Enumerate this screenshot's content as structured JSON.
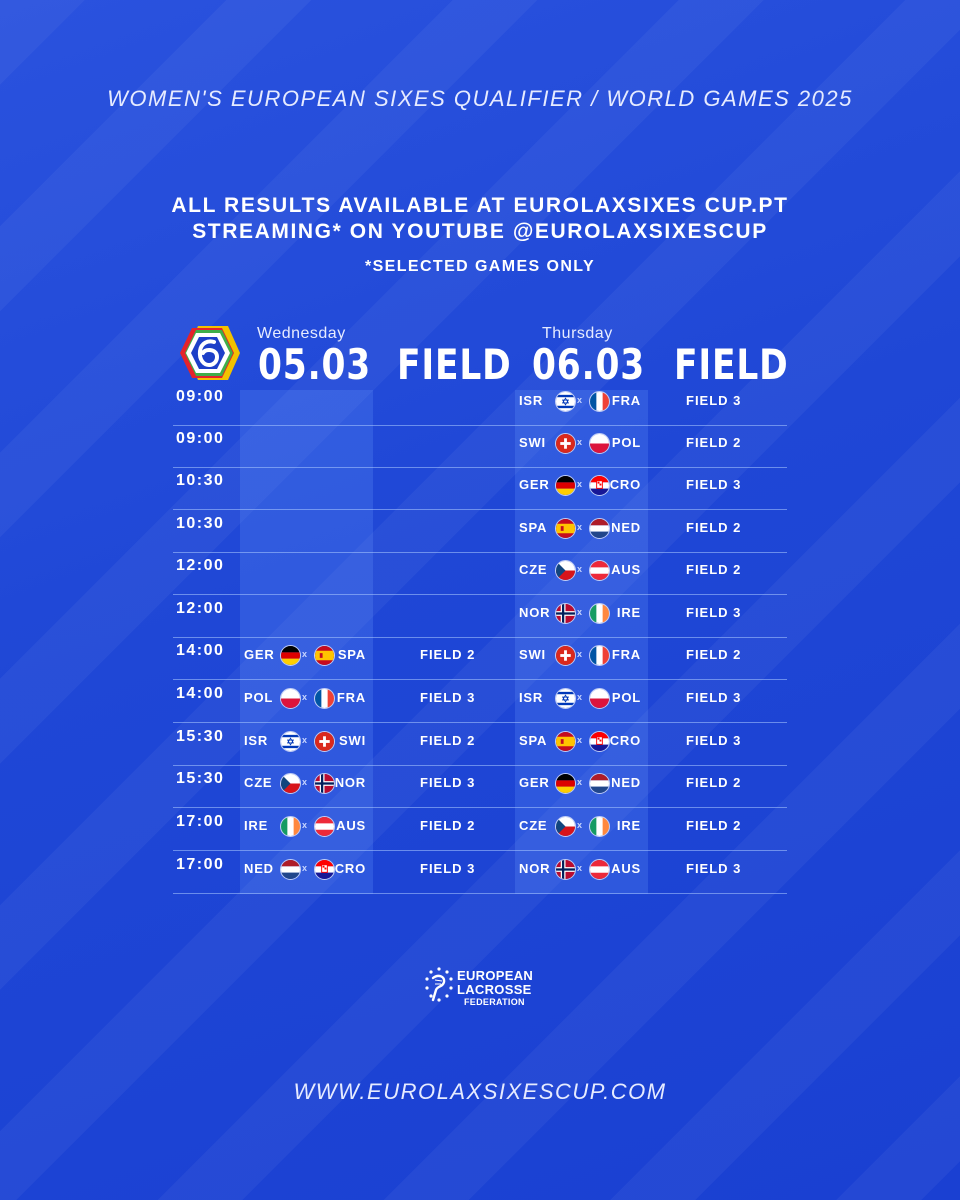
{
  "header": {
    "title": "WOMEN'S EUROPEAN SIXES QUALIFIER / WORLD GAMES 2025",
    "info_line1": "ALL RESULTS AVAILABLE AT EUROLAXSIXES CUP.PT",
    "info_line2": "STREAMING* ON YOUTUBE @EUROLAXSIXESCUP",
    "note": "*SELECTED GAMES ONLY"
  },
  "columns": {
    "day1_name": "Wednesday",
    "day1_date": "05.03",
    "day1_field": "FIELD",
    "day2_name": "Thursday",
    "day2_date": "06.03",
    "day2_field": "FIELD"
  },
  "match_separator": "x",
  "rows": [
    {
      "time": "09:00",
      "d1": null,
      "d2": {
        "t1": "ISR",
        "f1": "isr",
        "t2": "FRA",
        "f2": "fra",
        "field": "FIELD 3"
      }
    },
    {
      "time": "09:00",
      "d1": null,
      "d2": {
        "t1": "SWI",
        "f1": "swi",
        "t2": "POL",
        "f2": "pol",
        "field": "FIELD 2"
      }
    },
    {
      "time": "10:30",
      "d1": null,
      "d2": {
        "t1": "GER",
        "f1": "ger",
        "t2": "CRO",
        "f2": "cro",
        "field": "FIELD 3"
      }
    },
    {
      "time": "10:30",
      "d1": null,
      "d2": {
        "t1": "SPA",
        "f1": "spa",
        "t2": "NED",
        "f2": "ned",
        "field": "FIELD 2"
      }
    },
    {
      "time": "12:00",
      "d1": null,
      "d2": {
        "t1": "CZE",
        "f1": "cze",
        "t2": "AUS",
        "f2": "aus",
        "field": "FIELD 2"
      }
    },
    {
      "time": "12:00",
      "d1": null,
      "d2": {
        "t1": "NOR",
        "f1": "nor",
        "t2": "IRE",
        "f2": "ire",
        "field": "FIELD 3"
      }
    },
    {
      "time": "14:00",
      "d1": {
        "t1": "GER",
        "f1": "ger",
        "t2": "SPA",
        "f2": "spa",
        "field": "FIELD 2"
      },
      "d2": {
        "t1": "SWI",
        "f1": "swi",
        "t2": "FRA",
        "f2": "fra",
        "field": "FIELD 2"
      }
    },
    {
      "time": "14:00",
      "d1": {
        "t1": "POL",
        "f1": "pol",
        "t2": "FRA",
        "f2": "fra",
        "field": "FIELD 3"
      },
      "d2": {
        "t1": "ISR",
        "f1": "isr",
        "t2": "POL",
        "f2": "pol",
        "field": "FIELD 3"
      }
    },
    {
      "time": "15:30",
      "d1": {
        "t1": "ISR",
        "f1": "isr",
        "t2": "SWI",
        "f2": "swi",
        "field": "FIELD 2"
      },
      "d2": {
        "t1": "SPA",
        "f1": "spa",
        "t2": "CRO",
        "f2": "cro",
        "field": "FIELD 3"
      }
    },
    {
      "time": "15:30",
      "d1": {
        "t1": "CZE",
        "f1": "cze",
        "t2": "NOR",
        "f2": "nor",
        "field": "FIELD 3"
      },
      "d2": {
        "t1": "GER",
        "f1": "ger",
        "t2": "NED",
        "f2": "ned",
        "field": "FIELD 2"
      }
    },
    {
      "time": "17:00",
      "d1": {
        "t1": "IRE",
        "f1": "ire",
        "t2": "AUS",
        "f2": "aus",
        "field": "FIELD 2"
      },
      "d2": {
        "t1": "CZE",
        "f1": "cze",
        "t2": "IRE",
        "f2": "ire",
        "field": "FIELD 2"
      }
    },
    {
      "time": "17:00",
      "d1": {
        "t1": "NED",
        "f1": "ned",
        "t2": "CRO",
        "f2": "cro",
        "field": "FIELD 3"
      },
      "d2": {
        "t1": "NOR",
        "f1": "nor",
        "t2": "AUS",
        "f2": "aus",
        "field": "FIELD 3"
      }
    }
  ],
  "footer": {
    "federation_line1": "EUROPEAN",
    "federation_line2": "LACROSSE",
    "federation_line3": "FEDERATION",
    "url": "WWW.EUROLAXSIXESCUP.COM"
  },
  "icons": {
    "event_logo": "sixes-logo-icon",
    "federation_logo": "lacrosse-federation-icon"
  },
  "colors": {
    "background": "#2049d8",
    "column_highlight": "#4f7ff0",
    "row_divider": "#a9c3ff"
  }
}
